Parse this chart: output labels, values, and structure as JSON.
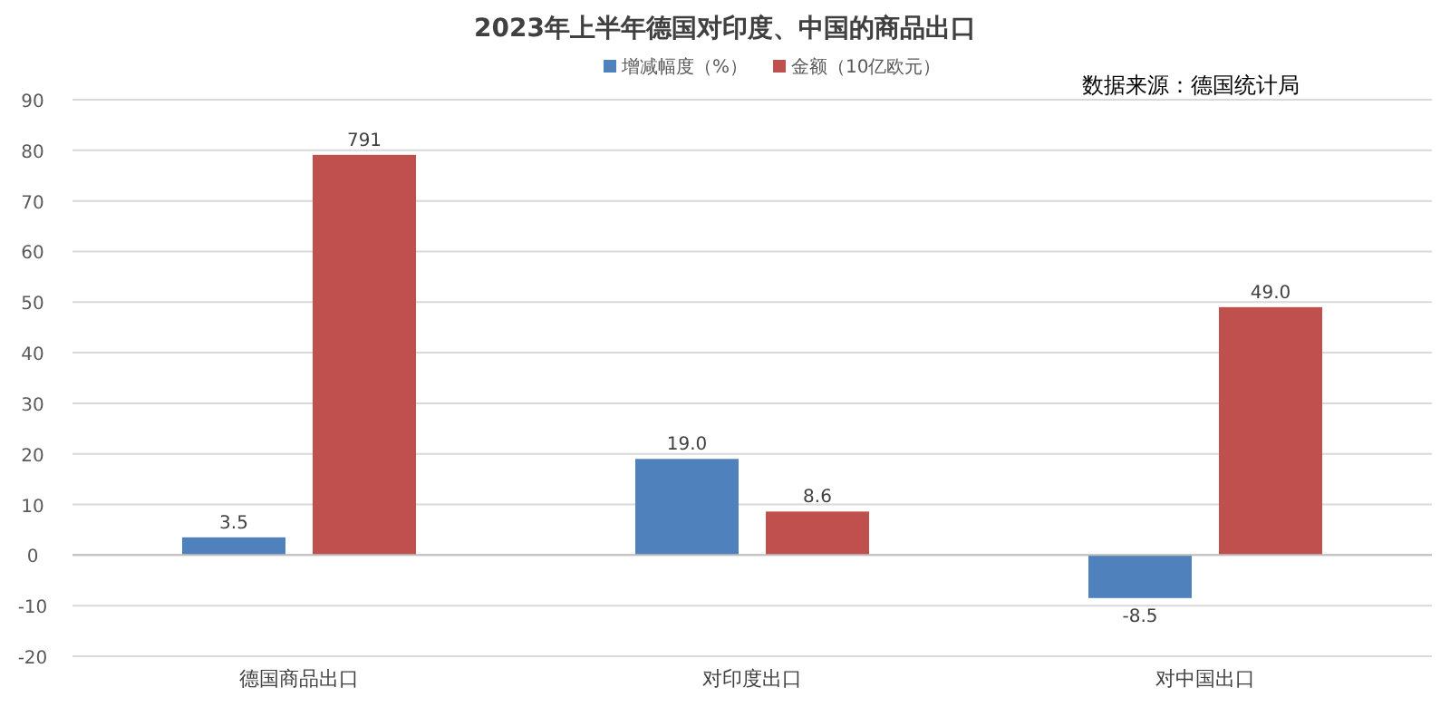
{
  "chart_data": {
    "type": "bar",
    "title": "2023年上半年德国对印度、中国的商品出口",
    "categories": [
      "德国商品出口",
      "对印度出口",
      "对中国出口"
    ],
    "series": [
      {
        "name": "增减幅度（%）",
        "color": "#4f81bd",
        "values": [
          3.5,
          19.0,
          -8.5
        ],
        "value_labels": [
          "3.5",
          "19.0",
          "-8.5"
        ]
      },
      {
        "name": "金额（10亿欧元）",
        "color": "#c0504d",
        "values": [
          79.1,
          8.6,
          49.0
        ],
        "value_labels": [
          null,
          "8.6",
          "49.0"
        ]
      }
    ],
    "ylim": [
      -20,
      90
    ],
    "yticks": [
      -20,
      -10,
      0,
      10,
      20,
      30,
      40,
      50,
      60,
      70,
      80,
      90
    ],
    "grid": "y",
    "legend": "top",
    "annotations": [
      "数据来源：德国统计局",
      "791"
    ]
  }
}
